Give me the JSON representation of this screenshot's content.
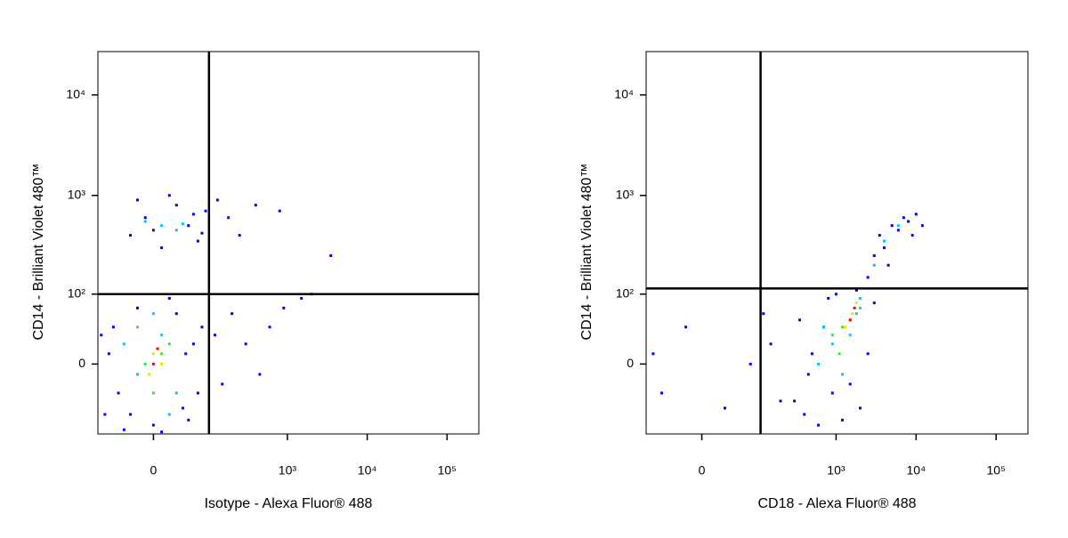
{
  "chart_data": [
    {
      "type": "scatter",
      "scale": "biexponential",
      "x_label": "Isotype - Alexa Fluor® 488",
      "y_label": "CD14 - Brilliant Violet 480™",
      "xlim": [
        -100,
        250000
      ],
      "ylim": [
        -100,
        27000
      ],
      "xticks": [
        0,
        {
          "value": 1000,
          "label": "10³"
        },
        {
          "value": 10000,
          "label": "10⁴"
        },
        {
          "value": 100000,
          "label": "10⁵"
        }
      ],
      "yticks": [
        0,
        {
          "value": 100,
          "label": "10²"
        },
        {
          "value": 1000,
          "label": "10³"
        },
        {
          "value": 10000,
          "label": "10⁴"
        }
      ],
      "gate": {
        "x": 100,
        "y": 100
      },
      "series": [
        {
          "color": "#0000ff",
          "x": [
            -80,
            -60,
            -40,
            -20,
            0,
            20,
            40,
            60,
            70,
            -70,
            -50,
            30,
            50,
            80,
            -30,
            10,
            -90,
            45,
            -30,
            -10,
            10,
            30,
            50,
            70,
            90,
            -20,
            0,
            20,
            60,
            80,
            120,
            150,
            200,
            300,
            450,
            600,
            900,
            1500,
            250,
            400,
            800,
            3500,
            2000,
            130,
            180
          ],
          "y": [
            -60,
            40,
            -90,
            70,
            -80,
            90,
            -50,
            20,
            -30,
            10,
            -30,
            60,
            -70,
            40,
            -60,
            -95,
            30,
            10,
            400,
            600,
            300,
            800,
            500,
            350,
            700,
            900,
            450,
            1000,
            650,
            420,
            30,
            -20,
            60,
            20,
            -10,
            40,
            70,
            90,
            400,
            800,
            700,
            250,
            100,
            900,
            600
          ]
        },
        {
          "color": "#00c8ff",
          "x": [
            -20,
            10,
            30,
            -40,
            0,
            20,
            10,
            30,
            -10,
            40
          ],
          "y": [
            -10,
            30,
            -30,
            20,
            60,
            -60,
            500,
            450,
            550,
            520
          ]
        },
        {
          "color": "#40e040",
          "x": [
            -10,
            10,
            0,
            20,
            -20
          ],
          "y": [
            0,
            10,
            -30,
            20,
            40
          ]
        },
        {
          "color": "#f0e000",
          "x": [
            0,
            -5,
            10
          ],
          "y": [
            10,
            -10,
            0
          ]
        },
        {
          "color": "#ff0000",
          "x": [
            0,
            5
          ],
          "y": [
            0,
            15
          ]
        }
      ]
    },
    {
      "type": "scatter",
      "scale": "biexponential",
      "x_label": "CD18 - Alexa Fluor® 488",
      "y_label": "CD14 - Brilliant Violet 480™",
      "xlim": [
        -100,
        250000
      ],
      "ylim": [
        -100,
        27000
      ],
      "xticks": [
        0,
        {
          "value": 1000,
          "label": "10³"
        },
        {
          "value": 10000,
          "label": "10⁴"
        },
        {
          "value": 100000,
          "label": "10⁵"
        }
      ],
      "yticks": [
        0,
        {
          "value": 100,
          "label": "10²"
        },
        {
          "value": 1000,
          "label": "10³"
        },
        {
          "value": 10000,
          "label": "10⁴"
        }
      ],
      "gate": {
        "x": 110,
        "y": 115
      },
      "series": [
        {
          "color": "#0000ff",
          "x": [
            -60,
            -20,
            30,
            80,
            150,
            200,
            120,
            -80,
            300,
            400,
            500,
            600,
            700,
            900,
            1200,
            1500,
            2000,
            2500,
            3000,
            800,
            350,
            450,
            1000,
            1800,
            2500,
            3000,
            3500,
            4000,
            5000,
            6000,
            7000,
            8000,
            10000,
            9000,
            4500,
            12000
          ],
          "y": [
            -30,
            40,
            -50,
            0,
            20,
            -40,
            60,
            10,
            -40,
            -60,
            10,
            -80,
            40,
            -30,
            -70,
            -20,
            -50,
            10,
            80,
            90,
            50,
            -10,
            100,
            110,
            150,
            250,
            400,
            300,
            500,
            450,
            600,
            550,
            650,
            400,
            200,
            500
          ]
        },
        {
          "color": "#00c8ff",
          "x": [
            600,
            900,
            1200,
            1500,
            1800,
            2000,
            4000,
            6000,
            3000,
            700
          ],
          "y": [
            0,
            20,
            -10,
            30,
            60,
            90,
            350,
            500,
            200,
            40
          ]
        },
        {
          "color": "#40e040",
          "x": [
            900,
            1200,
            1500,
            2000,
            1100
          ],
          "y": [
            30,
            40,
            50,
            70,
            10
          ]
        },
        {
          "color": "#f0e000",
          "x": [
            1300,
            1600,
            1800
          ],
          "y": [
            40,
            60,
            80
          ]
        },
        {
          "color": "#ff0000",
          "x": [
            1500,
            1700
          ],
          "y": [
            50,
            70
          ]
        }
      ]
    }
  ]
}
